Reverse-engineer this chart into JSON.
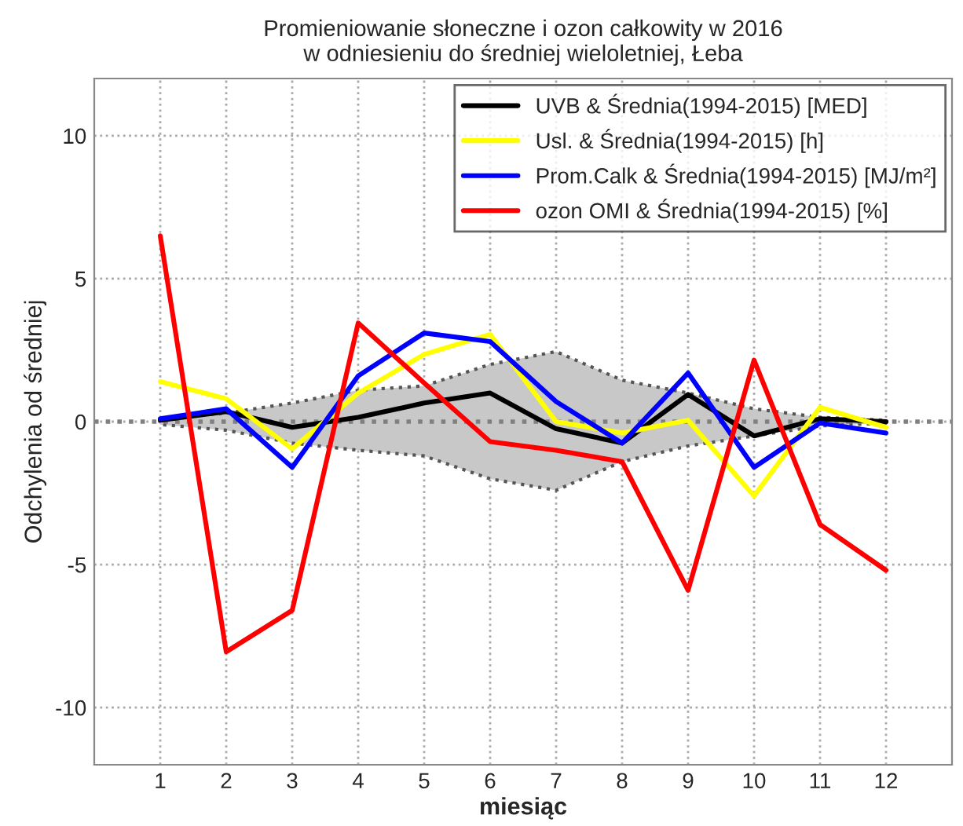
{
  "chart_data": {
    "type": "line",
    "title": "Promieniowanie słoneczne i ozon całkowity w 2016\nw odniesieniu do średniej wieloletniej, Łeba",
    "xlabel": "miesiąc",
    "ylabel": "Odchylenia od średniej",
    "x": [
      1,
      2,
      3,
      4,
      5,
      6,
      7,
      8,
      9,
      10,
      11,
      12
    ],
    "series": [
      {
        "name": "UVB & Średnia(1994-2015) [MED]",
        "color": "#000000",
        "values": [
          0.05,
          0.35,
          -0.2,
          0.15,
          0.65,
          1.0,
          -0.25,
          -0.75,
          0.95,
          -0.5,
          0.1,
          0.0
        ],
        "lower": [
          -0.1,
          -0.3,
          -0.75,
          -1.0,
          -1.2,
          -2.0,
          -2.4,
          -1.4,
          -0.85,
          -0.5,
          -0.15,
          -0.05
        ],
        "upper": [
          0.1,
          0.3,
          0.65,
          1.1,
          1.25,
          2.0,
          2.45,
          1.45,
          1.0,
          0.45,
          0.15,
          0.05
        ]
      },
      {
        "name": "Usl. & Średnia(1994-2015) [h]",
        "color": "#ffff00",
        "values": [
          1.4,
          0.8,
          -0.95,
          1.0,
          2.35,
          3.05,
          0.0,
          -0.4,
          0.05,
          -2.6,
          0.5,
          -0.2
        ]
      },
      {
        "name": "Prom.Calk & Średnia(1994-2015) [MJ/m²]",
        "color": "#0000ff",
        "values": [
          0.1,
          0.45,
          -1.6,
          1.6,
          3.1,
          2.8,
          0.7,
          -0.75,
          1.7,
          -1.6,
          -0.05,
          -0.4
        ]
      },
      {
        "name": "ozon OMI & Średnia(1994-2015) [%]",
        "color": "#ff0000",
        "values": [
          6.5,
          -8.05,
          -6.6,
          3.45,
          1.35,
          -0.7,
          -1.0,
          -1.4,
          -5.9,
          2.15,
          -3.6,
          -5.2
        ]
      }
    ],
    "ref_lines": [
      {
        "axis": "y",
        "value": 0,
        "color": "#808080",
        "line_style": "dotted"
      }
    ],
    "xlim": [
      0,
      13
    ],
    "ylim": [
      -12,
      12
    ],
    "xticks": [
      1,
      2,
      3,
      4,
      5,
      6,
      7,
      8,
      9,
      10,
      11,
      12
    ],
    "yticks": [
      -10,
      -5,
      0,
      5,
      10
    ],
    "grid": true,
    "legend": "top right"
  }
}
